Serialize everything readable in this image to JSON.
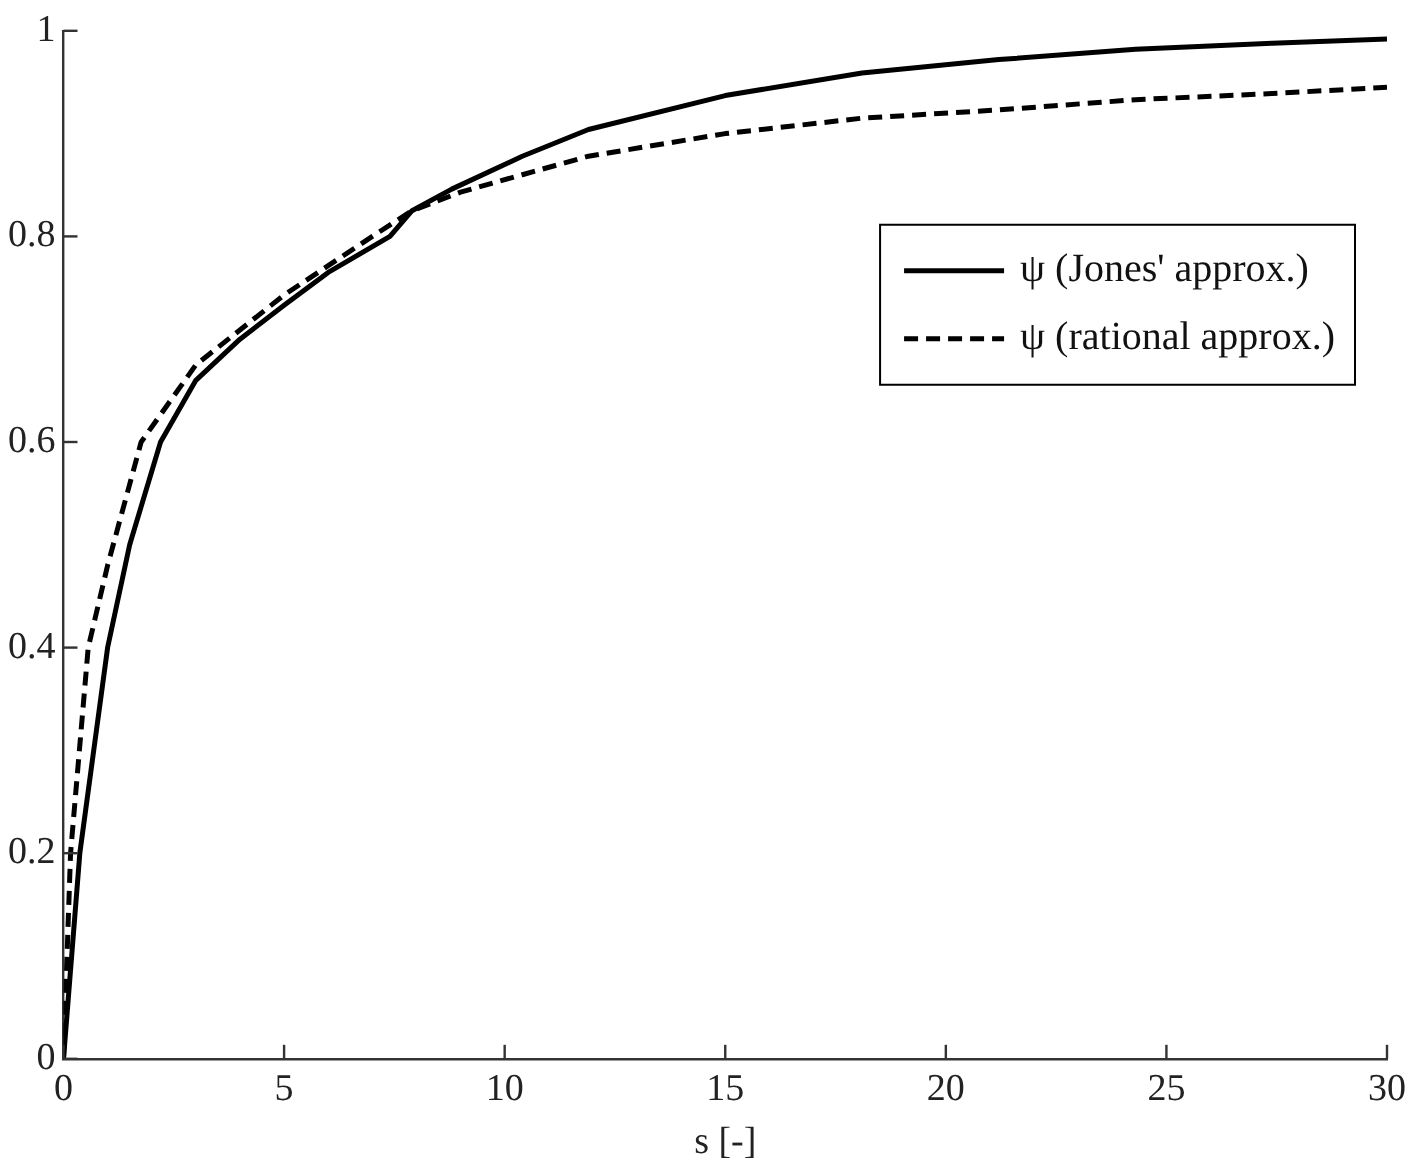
{
  "chart_data": {
    "type": "line",
    "xlabel": "s [-]",
    "xlim": [
      0,
      30
    ],
    "xticks": [
      0,
      5,
      10,
      15,
      20,
      25,
      30
    ],
    "ylim": [
      0,
      1
    ],
    "yticks": [
      0,
      0.2,
      0.4,
      0.6,
      0.8,
      1
    ],
    "grid": false,
    "legend": "right",
    "marker": "none",
    "series": [
      {
        "name": "ψ (Jones' approx.)",
        "color": "#000000",
        "line_style": "solid",
        "x": [
          0,
          0.37,
          1.0,
          1.5,
          2.2,
          3,
          4,
          5,
          6,
          7.4,
          7.9,
          8.8,
          10.4,
          11.9,
          15,
          18.1,
          21.2,
          24.3,
          27.4,
          30
        ],
        "values": [
          0,
          0.2,
          0.4,
          0.5,
          0.6,
          0.66,
          0.7,
          0.733,
          0.765,
          0.8,
          0.825,
          0.846,
          0.878,
          0.904,
          0.937,
          0.959,
          0.972,
          0.982,
          0.988,
          0.992
        ]
      },
      {
        "name": "ψ (rational approx.)",
        "color": "#000000",
        "line_style": "dashed",
        "x": [
          0,
          0.16,
          0.56,
          1.0,
          1.76,
          3,
          5,
          7,
          7.9,
          9,
          10.4,
          11.9,
          15,
          18.1,
          21.2,
          24.3,
          27.4,
          30
        ],
        "values": [
          0,
          0.2,
          0.4,
          0.48,
          0.6,
          0.675,
          0.743,
          0.8,
          0.825,
          0.843,
          0.86,
          0.878,
          0.9,
          0.915,
          0.923,
          0.933,
          0.939,
          0.945
        ]
      }
    ]
  }
}
